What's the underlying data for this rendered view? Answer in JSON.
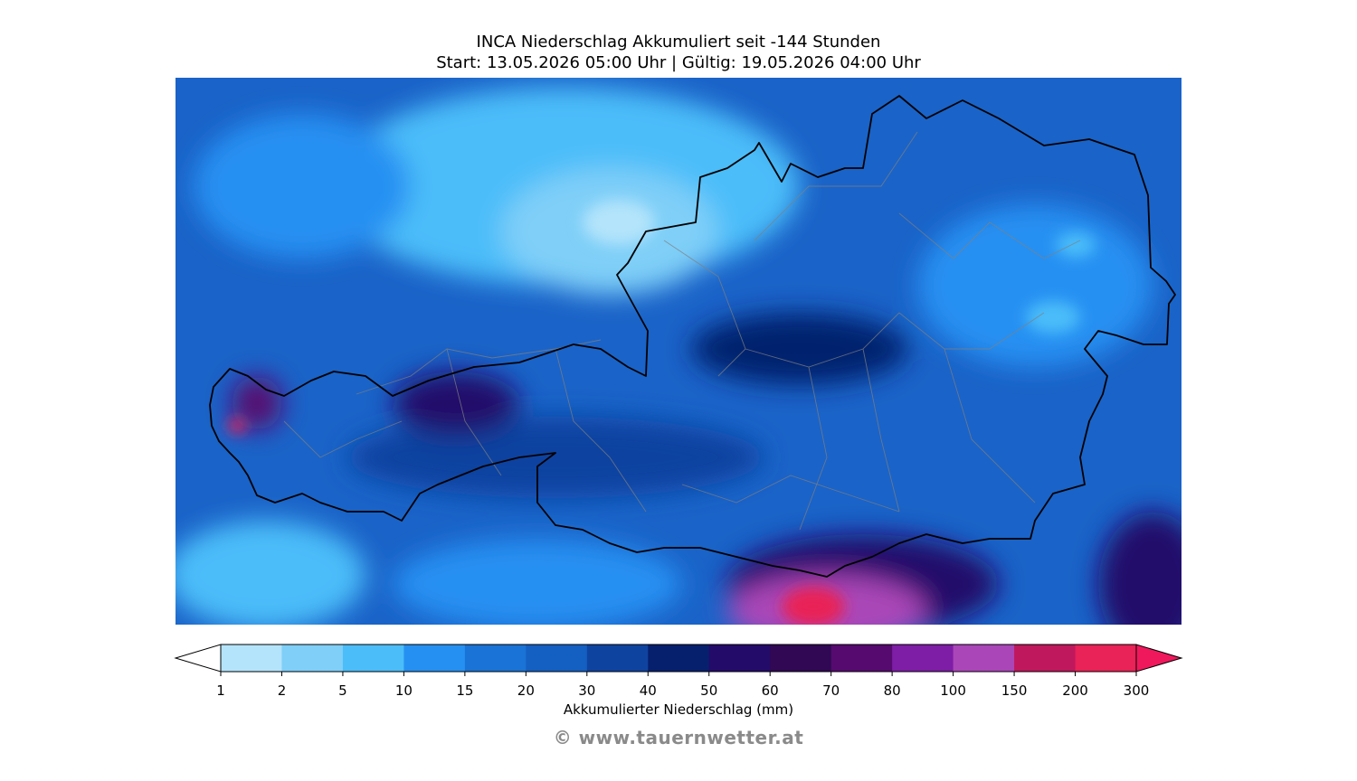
{
  "title_line1": "INCA Niederschlag Akkumuliert seit -144 Stunden",
  "title_line2": "Start: 13.05.2026 05:00 Uhr | Gültig: 19.05.2026 04:00 Uhr",
  "colorbar": {
    "label": "Akkumulierter Niederschlag (mm)",
    "ticks": [
      "1",
      "2",
      "5",
      "10",
      "15",
      "20",
      "30",
      "40",
      "50",
      "60",
      "70",
      "80",
      "100",
      "150",
      "200",
      "300"
    ],
    "colors": [
      "#b4e4fb",
      "#7fcff8",
      "#4bbdf9",
      "#2690f2",
      "#1a73d6",
      "#145fc2",
      "#0f43a0",
      "#06206e",
      "#230b6a",
      "#300854",
      "#560a6f",
      "#7e1da6",
      "#aa46b8",
      "#c0185c",
      "#e92257"
    ],
    "under_color": "#ffffff",
    "over_color": "#f0185c"
  },
  "credit": "© www.tauernwetter.at",
  "map": {
    "background_color": "#1a63c8",
    "country_border_color": "#000000",
    "district_border_color": "#808080"
  }
}
